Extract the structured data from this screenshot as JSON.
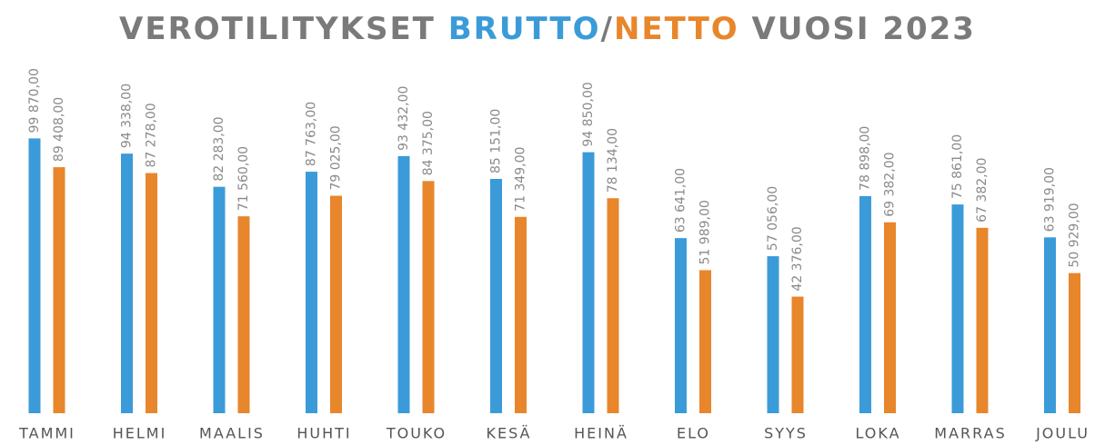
{
  "chart_data": {
    "type": "bar",
    "title_prefix": "VEROTILITYKSET",
    "title_separator": "/",
    "title_suffix": "VUOSI 2023",
    "categories": [
      "TAMMI",
      "HELMI",
      "MAALIS",
      "HUHTI",
      "TOUKO",
      "KESÄ",
      "HEINÄ",
      "ELO",
      "SYYS",
      "LOKA",
      "MARRAS",
      "JOULU"
    ],
    "series": [
      {
        "name": "BRUTTO",
        "color": "#3b9bd8",
        "values": [
          99870,
          94338,
          82283,
          87763,
          93432,
          85151,
          94850,
          63641,
          57056,
          78898,
          75861,
          63919
        ],
        "value_labels": [
          "99 870,00",
          "94 338,00",
          "82 283,00",
          "87 763,00",
          "93 432,00",
          "85 151,00",
          "94 850,00",
          "63 641,00",
          "57 056,00",
          "78 898,00",
          "75 861,00",
          "63 919,00"
        ]
      },
      {
        "name": "NETTO",
        "color": "#e8862c",
        "values": [
          89408,
          87278,
          71560,
          79025,
          84375,
          71349,
          78134,
          51989,
          42376,
          69382,
          67382,
          50929
        ],
        "value_labels": [
          "89 408,00",
          "87 278,00",
          "71 560,00",
          "79 025,00",
          "84 375,00",
          "71 349,00",
          "78 134,00",
          "51 989,00",
          "42 376,00",
          "69 382,00",
          "67 382,00",
          "50 929,00"
        ]
      }
    ],
    "ylim": [
      0,
      100000
    ]
  }
}
